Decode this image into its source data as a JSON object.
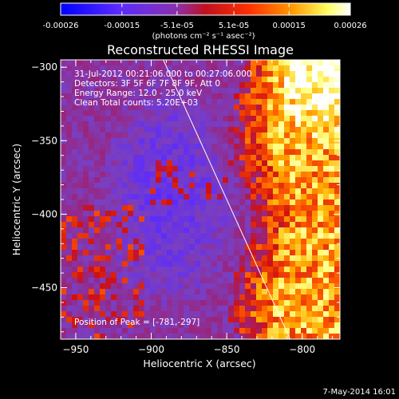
{
  "chart_data": {
    "type": "heatmap",
    "title": "Reconstructed RHESSI Image",
    "xlabel": "Heliocentric X (arcsec)",
    "ylabel": "Heliocentric Y (arcsec)",
    "xlim": [
      -960,
      -775
    ],
    "ylim": [
      -485,
      -295
    ],
    "x_ticks": [
      -950,
      -900,
      -850,
      -800
    ],
    "y_ticks": [
      -300,
      -350,
      -400,
      -450
    ],
    "colorbar": {
      "label": "(photons cm⁻² s⁻¹ asec⁻²)",
      "range": [
        -0.00026,
        0.00026
      ],
      "ticks": [
        "-0.00026",
        "-0.00015",
        "-5.1e-05",
        "5.1e-05",
        "0.00015",
        "0.00026"
      ],
      "tick_values": [
        -0.00026,
        -0.00015,
        -5.1e-05,
        5.1e-05,
        0.00015,
        0.00026
      ],
      "colormap": "blue-purple-red-yellow-white"
    },
    "annotations": [
      "31-Jul-2012 00:21:06.000 to 00:27:06.000",
      "Detectors: 3F 5F 6F 7F 8F 9F, Att 0",
      "Energy Range: 12.0 - 25.0 keV",
      "Clean    Total counts: 5.20E+03"
    ],
    "peak_label": "Position of Peak = [-781,-297]",
    "limb_line": {
      "x": [
        -892,
        -808
      ],
      "y": [
        -295,
        -485
      ]
    },
    "color_stops": [
      "#0000ff",
      "#5a2bff",
      "#7a3fc0",
      "#a02070",
      "#d01010",
      "#ff5a00",
      "#ffb000",
      "#ffff80",
      "#ffffff"
    ]
  },
  "footer": {
    "date": "7-May-2014 16:01"
  }
}
